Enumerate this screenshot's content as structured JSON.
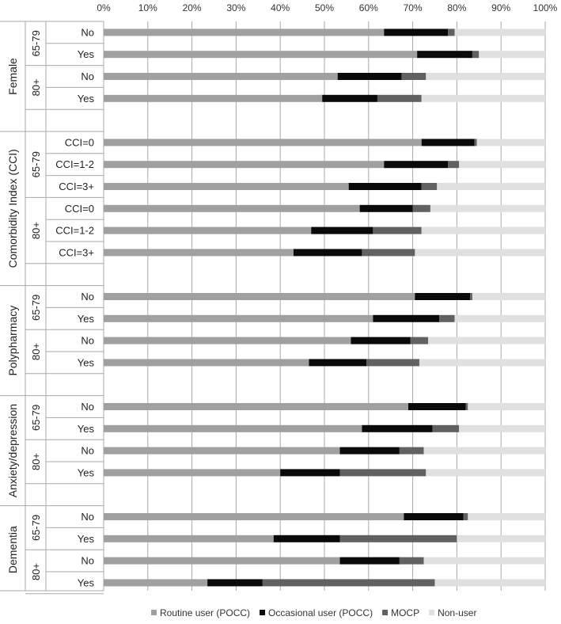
{
  "chart_data": {
    "type": "bar",
    "orientation": "horizontal",
    "stacked": true,
    "xlim": [
      0,
      100
    ],
    "x_ticks": [
      "0%",
      "10%",
      "20%",
      "30%",
      "40%",
      "50%",
      "60%",
      "70%",
      "80%",
      "90%",
      "100%"
    ],
    "grid": true,
    "legend_position": "bottom",
    "series": [
      {
        "name": "Routine user (POCC)",
        "color": "#a0a0a0"
      },
      {
        "name": "Occasional user (POCC)",
        "color": "#0a0a0a"
      },
      {
        "name": "MOCP",
        "color": "#616161"
      },
      {
        "name": "Non-user",
        "color": "#e0e0e0"
      }
    ],
    "groups": [
      {
        "label": "Female",
        "subgroups": [
          {
            "label": "65-79",
            "rows": [
              {
                "label": "No",
                "values": [
                  63.5,
                  14.5,
                  1.5,
                  20.5
                ]
              },
              {
                "label": "Yes",
                "values": [
                  71,
                  12.5,
                  1.5,
                  15
                ]
              }
            ]
          },
          {
            "label": "80+",
            "rows": [
              {
                "label": "No",
                "values": [
                  53,
                  14.5,
                  5.5,
                  27
                ]
              },
              {
                "label": "Yes",
                "values": [
                  49.5,
                  12.5,
                  10,
                  28
                ]
              }
            ]
          }
        ]
      },
      {
        "label": "Comorbidity Index (CCI)",
        "subgroups": [
          {
            "label": "65-79",
            "rows": [
              {
                "label": "CCI=0",
                "values": [
                  72,
                  12,
                  0.5,
                  15.5
                ]
              },
              {
                "label": "CCI=1-2",
                "values": [
                  63.5,
                  14.5,
                  2.5,
                  19.5
                ]
              },
              {
                "label": "CCI=3+",
                "values": [
                  55.5,
                  16.5,
                  3.5,
                  24.5
                ]
              }
            ]
          },
          {
            "label": "80+",
            "rows": [
              {
                "label": "CCI=0",
                "values": [
                  58,
                  12,
                  4,
                  26
                ]
              },
              {
                "label": "CCI=1-2",
                "values": [
                  47,
                  14,
                  11,
                  28
                ]
              },
              {
                "label": "CCI=3+",
                "values": [
                  43,
                  15.5,
                  12,
                  29.5
                ]
              }
            ]
          }
        ]
      },
      {
        "label": "Polypharmacy",
        "subgroups": [
          {
            "label": "65-79",
            "rows": [
              {
                "label": "No",
                "values": [
                  70.5,
                  12.5,
                  0.5,
                  16.5
                ]
              },
              {
                "label": "Yes",
                "values": [
                  61,
                  15,
                  3.5,
                  20.5
                ]
              }
            ]
          },
          {
            "label": "80+",
            "rows": [
              {
                "label": "No",
                "values": [
                  56,
                  13.5,
                  4,
                  26.5
                ]
              },
              {
                "label": "Yes",
                "values": [
                  46.5,
                  13,
                  12,
                  28.5
                ]
              }
            ]
          }
        ]
      },
      {
        "label": "Anxiety/depression",
        "subgroups": [
          {
            "label": "65-79",
            "rows": [
              {
                "label": "No",
                "values": [
                  69,
                  13,
                  0.5,
                  17.5
                ]
              },
              {
                "label": "Yes",
                "values": [
                  58.5,
                  16,
                  6,
                  19.5
                ]
              }
            ]
          },
          {
            "label": "80+",
            "rows": [
              {
                "label": "No",
                "values": [
                  53.5,
                  13.5,
                  5.5,
                  27.5
                ]
              },
              {
                "label": "Yes",
                "values": [
                  40,
                  13.5,
                  19.5,
                  27
                ]
              }
            ]
          }
        ]
      },
      {
        "label": "Dementia",
        "subgroups": [
          {
            "label": "65-79",
            "rows": [
              {
                "label": "No",
                "values": [
                  68,
                  13.5,
                  1,
                  17.5
                ]
              },
              {
                "label": "Yes",
                "values": [
                  38.5,
                  15,
                  26.5,
                  20
                ]
              }
            ]
          },
          {
            "label": "80+",
            "rows": [
              {
                "label": "No",
                "values": [
                  53.5,
                  13.5,
                  5.5,
                  27.5
                ]
              },
              {
                "label": "Yes",
                "values": [
                  23.5,
                  12.5,
                  39,
                  25
                ]
              }
            ]
          }
        ]
      }
    ]
  }
}
